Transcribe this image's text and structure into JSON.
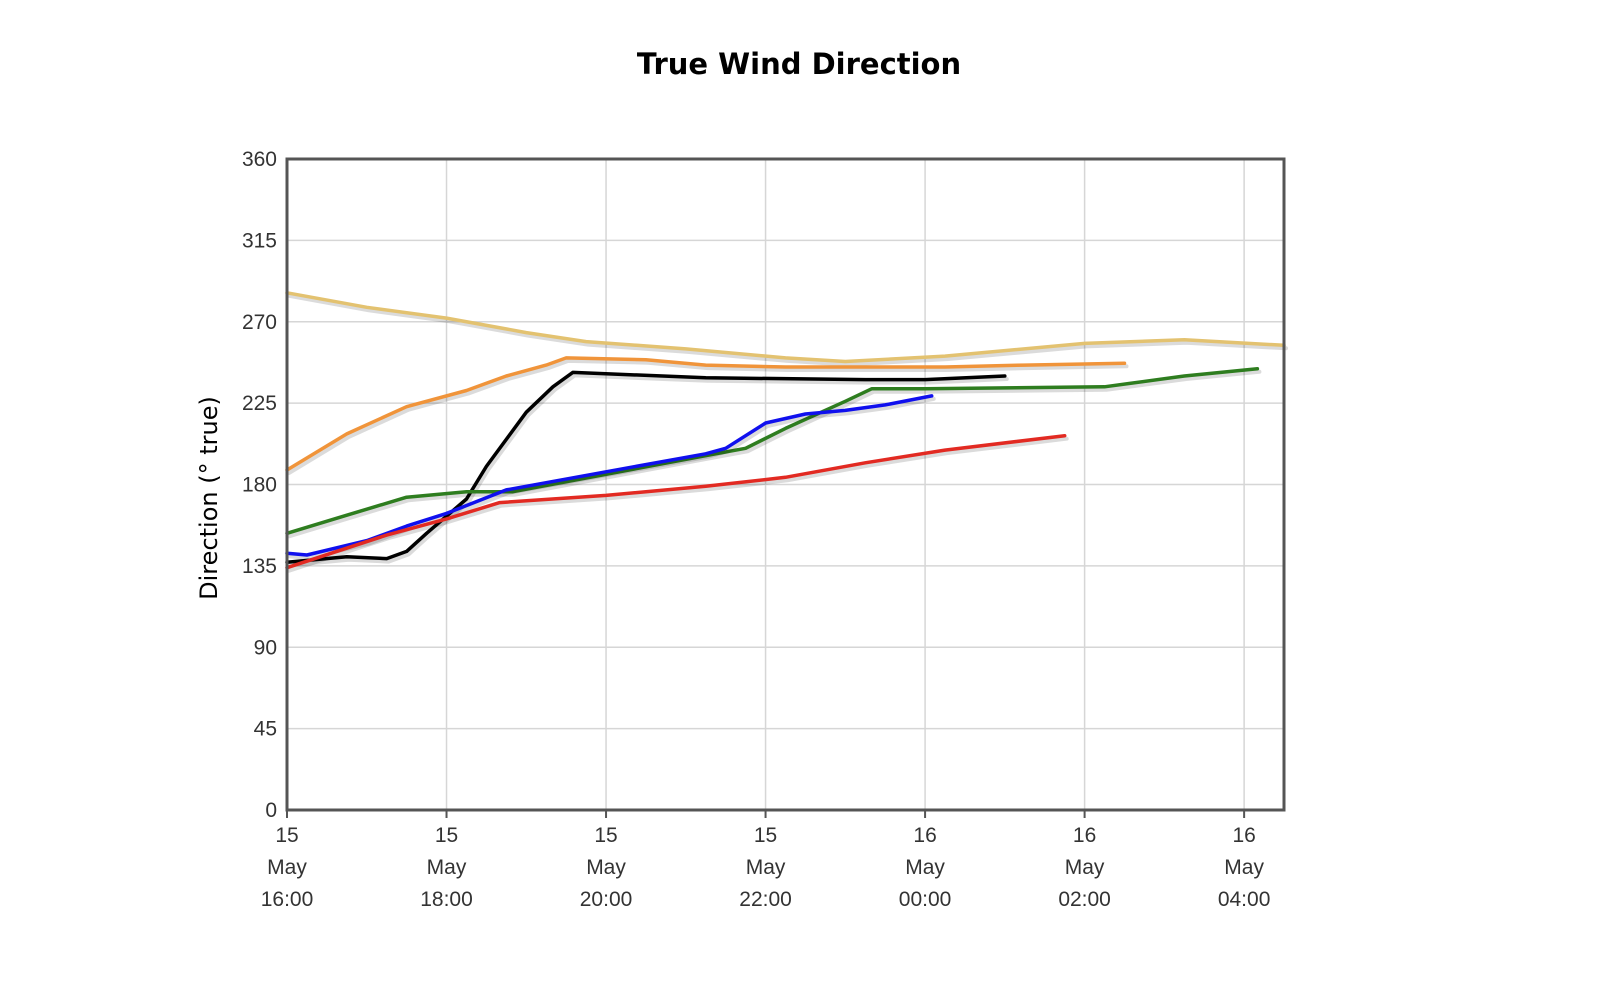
{
  "chart_data": {
    "type": "line",
    "title": "True Wind Direction",
    "xlabel": "",
    "ylabel": "Direction (° true)",
    "ylim": [
      0,
      360
    ],
    "yticks": [
      0,
      45,
      90,
      135,
      180,
      225,
      270,
      315,
      360
    ],
    "xlim": [
      "2024-05-15 16:00",
      "2024-05-16 04:30"
    ],
    "xticks": [
      {
        "x": "2024-05-15 16:00",
        "lines": [
          "15",
          "May",
          "16:00"
        ]
      },
      {
        "x": "2024-05-15 18:00",
        "lines": [
          "15",
          "May",
          "18:00"
        ]
      },
      {
        "x": "2024-05-15 20:00",
        "lines": [
          "15",
          "May",
          "20:00"
        ]
      },
      {
        "x": "2024-05-15 22:00",
        "lines": [
          "15",
          "May",
          "22:00"
        ]
      },
      {
        "x": "2024-05-16 00:00",
        "lines": [
          "16",
          "May",
          "00:00"
        ]
      },
      {
        "x": "2024-05-16 02:00",
        "lines": [
          "16",
          "May",
          "02:00"
        ]
      },
      {
        "x": "2024-05-16 04:00",
        "lines": [
          "16",
          "May",
          "04:00"
        ]
      }
    ],
    "grid": true,
    "legend": "none",
    "series": [
      {
        "color": "#e3c270",
        "points": [
          [
            "2024-05-15 16:00",
            286
          ],
          [
            "2024-05-15 17:00",
            278
          ],
          [
            "2024-05-15 18:00",
            272
          ],
          [
            "2024-05-15 19:00",
            264
          ],
          [
            "2024-05-15 19:45",
            259
          ],
          [
            "2024-05-15 21:00",
            255
          ],
          [
            "2024-05-15 22:15",
            250
          ],
          [
            "2024-05-15 23:00",
            248
          ],
          [
            "2024-05-16 00:15",
            251
          ],
          [
            "2024-05-16 02:00",
            258
          ],
          [
            "2024-05-16 03:15",
            260
          ],
          [
            "2024-05-16 04:30",
            257
          ]
        ]
      },
      {
        "color": "#f0943a",
        "points": [
          [
            "2024-05-15 16:00",
            188
          ],
          [
            "2024-05-15 16:45",
            208
          ],
          [
            "2024-05-15 17:30",
            223
          ],
          [
            "2024-05-15 18:15",
            232
          ],
          [
            "2024-05-15 18:45",
            240
          ],
          [
            "2024-05-15 19:15",
            246
          ],
          [
            "2024-05-15 19:30",
            250
          ],
          [
            "2024-05-15 20:30",
            249
          ],
          [
            "2024-05-15 21:15",
            246
          ],
          [
            "2024-05-15 22:15",
            245
          ],
          [
            "2024-05-15 23:15",
            245
          ],
          [
            "2024-05-16 00:15",
            245
          ],
          [
            "2024-05-16 01:15",
            246
          ],
          [
            "2024-05-16 02:30",
            247
          ]
        ]
      },
      {
        "color": "#000000",
        "points": [
          [
            "2024-05-15 16:00",
            137
          ],
          [
            "2024-05-15 16:45",
            140
          ],
          [
            "2024-05-15 17:15",
            139
          ],
          [
            "2024-05-15 17:30",
            143
          ],
          [
            "2024-05-15 17:45",
            153
          ],
          [
            "2024-05-15 18:15",
            172
          ],
          [
            "2024-05-15 18:30",
            190
          ],
          [
            "2024-05-15 19:00",
            220
          ],
          [
            "2024-05-15 19:20",
            234
          ],
          [
            "2024-05-15 19:35",
            242
          ],
          [
            "2024-05-15 21:15",
            239
          ],
          [
            "2024-05-15 23:15",
            238
          ],
          [
            "2024-05-16 00:00",
            238
          ],
          [
            "2024-05-16 01:00",
            240
          ]
        ]
      },
      {
        "color": "#2e7d1f",
        "points": [
          [
            "2024-05-15 16:00",
            153
          ],
          [
            "2024-05-15 16:45",
            163
          ],
          [
            "2024-05-15 17:30",
            173
          ],
          [
            "2024-05-15 18:15",
            176
          ],
          [
            "2024-05-15 18:50",
            176
          ],
          [
            "2024-05-15 21:15",
            196
          ],
          [
            "2024-05-15 21:45",
            200
          ],
          [
            "2024-05-15 22:15",
            211
          ],
          [
            "2024-05-15 23:00",
            226
          ],
          [
            "2024-05-15 23:20",
            233
          ],
          [
            "2024-05-16 00:00",
            233
          ],
          [
            "2024-05-16 02:15",
            234
          ],
          [
            "2024-05-16 03:15",
            240
          ],
          [
            "2024-05-16 04:10",
            244
          ]
        ]
      },
      {
        "color": "#1010ee",
        "points": [
          [
            "2024-05-15 16:00",
            142
          ],
          [
            "2024-05-15 16:15",
            141
          ],
          [
            "2024-05-15 17:00",
            149
          ],
          [
            "2024-05-15 17:30",
            157
          ],
          [
            "2024-05-15 18:00",
            164
          ],
          [
            "2024-05-15 18:45",
            177
          ],
          [
            "2024-05-15 20:00",
            187
          ],
          [
            "2024-05-15 21:15",
            197
          ],
          [
            "2024-05-15 21:30",
            200
          ],
          [
            "2024-05-15 22:00",
            214
          ],
          [
            "2024-05-15 22:30",
            219
          ],
          [
            "2024-05-15 23:00",
            221
          ],
          [
            "2024-05-15 23:30",
            224
          ],
          [
            "2024-05-16 00:05",
            229
          ]
        ]
      },
      {
        "color": "#e22a22",
        "points": [
          [
            "2024-05-15 16:00",
            134
          ],
          [
            "2024-05-15 17:15",
            152
          ],
          [
            "2024-05-15 18:00",
            161
          ],
          [
            "2024-05-15 18:40",
            170
          ],
          [
            "2024-05-15 20:00",
            174
          ],
          [
            "2024-05-15 21:15",
            179
          ],
          [
            "2024-05-15 22:15",
            184
          ],
          [
            "2024-05-15 23:15",
            192
          ],
          [
            "2024-05-16 00:15",
            199
          ],
          [
            "2024-05-16 01:45",
            207
          ]
        ]
      }
    ]
  }
}
